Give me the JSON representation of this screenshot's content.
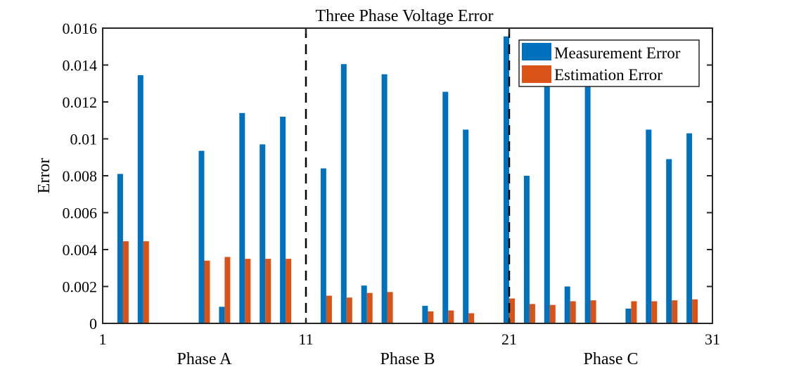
{
  "chart_data": {
    "type": "bar",
    "title": "Three Phase Voltage Error",
    "xlabel": "",
    "ylabel": "Error",
    "xlim": [
      1,
      31
    ],
    "ylim": [
      0,
      0.016
    ],
    "xticks": [
      1,
      11,
      21,
      31
    ],
    "yticks": [
      0,
      0.002,
      0.004,
      0.006,
      0.008,
      0.01,
      0.012,
      0.014,
      0.016
    ],
    "ytick_labels": [
      "0",
      "0.002",
      "0.004",
      "0.006",
      "0.008",
      "0.01",
      "0.012",
      "0.014",
      "0.016"
    ],
    "group_labels": [
      {
        "label": "Phase A",
        "center": 6
      },
      {
        "label": "Phase B",
        "center": 16
      },
      {
        "label": "Phase C",
        "center": 26
      }
    ],
    "dividers": [
      11,
      21
    ],
    "legend_position": "top-right",
    "grid": false,
    "x": [
      2,
      3,
      6,
      7,
      8,
      9,
      10,
      12,
      13,
      14,
      15,
      17,
      18,
      19,
      21,
      22,
      23,
      24,
      25,
      27,
      28,
      29,
      30
    ],
    "series": [
      {
        "name": "Measurement Error",
        "color": "#0072BD",
        "values": [
          0.0081,
          0.01345,
          0.00935,
          0.0009,
          0.0114,
          0.0097,
          0.0112,
          0.0084,
          0.01405,
          0.00205,
          0.0135,
          0.00095,
          0.01255,
          0.0105,
          0.01555,
          0.008,
          0.0135,
          0.002,
          0.0133,
          0.0008,
          0.0105,
          0.0089,
          0.0103
        ]
      },
      {
        "name": "Estimation Error",
        "color": "#D95319",
        "values": [
          0.00445,
          0.00445,
          0.0034,
          0.0036,
          0.0035,
          0.0035,
          0.0035,
          0.0015,
          0.0014,
          0.00165,
          0.0017,
          0.00065,
          0.0007,
          0.00055,
          0.00135,
          0.00105,
          0.001,
          0.0012,
          0.00125,
          0.0012,
          0.0012,
          0.00125,
          0.0013
        ]
      }
    ]
  }
}
